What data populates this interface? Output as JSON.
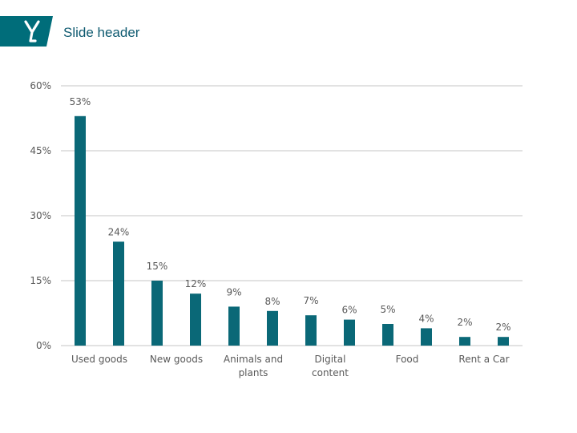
{
  "header": {
    "title": "Slide header"
  },
  "colors": {
    "brand": "#006d7a",
    "bar": "#0a6877",
    "grid": "#d9d9d9",
    "text": "#595959"
  },
  "chart_data": {
    "type": "bar",
    "categories": [
      "Used goods",
      "",
      "New goods",
      "",
      "Animals and plants",
      "",
      "Digital content",
      "",
      "Food",
      "",
      "Rent a Car",
      ""
    ],
    "values": [
      53,
      24,
      15,
      12,
      9,
      8,
      7,
      6,
      5,
      4,
      2,
      2
    ],
    "data_labels": [
      "53%",
      "24%",
      "15%",
      "12%",
      "9%",
      "8%",
      "7%",
      "6%",
      "5%",
      "4%",
      "2%",
      "2%"
    ],
    "y_ticks": [
      0,
      15,
      30,
      45,
      60
    ],
    "y_tick_labels": [
      "0%",
      "15%",
      "30%",
      "45%",
      "60%"
    ],
    "ylim": [
      0,
      60
    ],
    "grid": true,
    "legend": "none"
  }
}
